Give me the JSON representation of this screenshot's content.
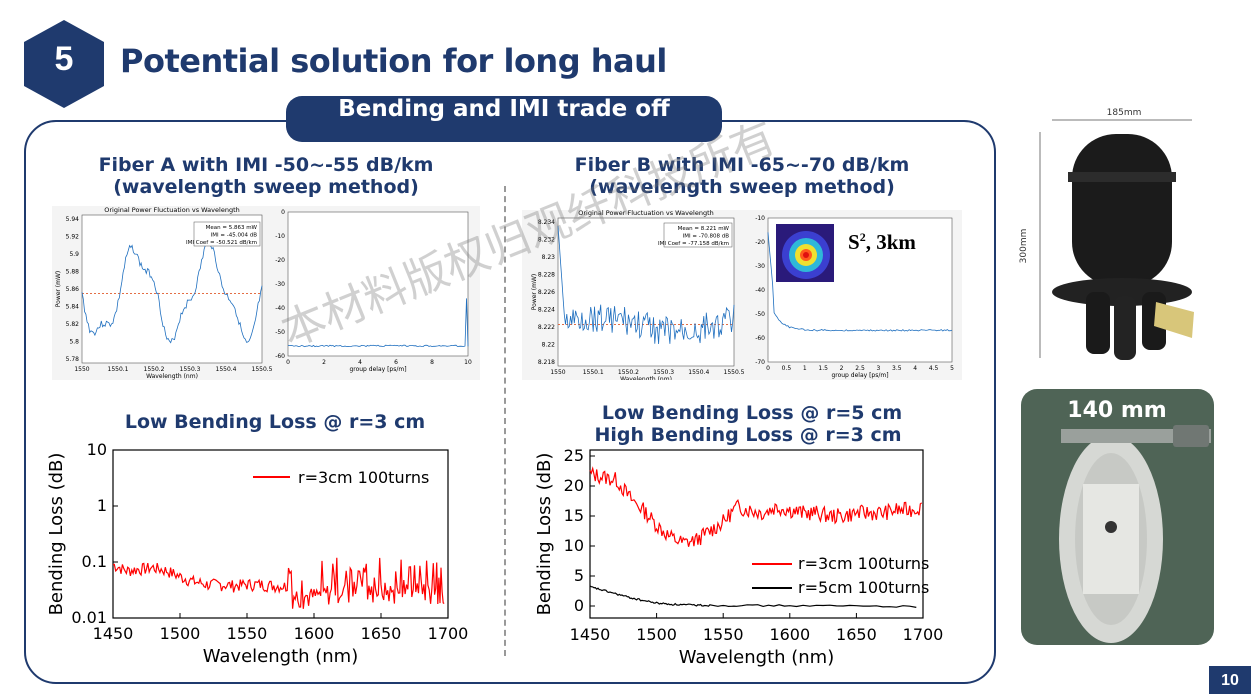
{
  "header": {
    "section_number": "5",
    "title": "Potential solution for long haul",
    "pill": "Bending and IMI trade off",
    "page_number": "10"
  },
  "left": {
    "subtitle_1": "Fiber A with IMI -50~-55 dB/km",
    "subtitle_2": "(wavelength sweep method)",
    "chart_title": "Low Bending Loss @ r=3 cm"
  },
  "right": {
    "subtitle_1": "Fiber B with IMI -65~-70 dB/km",
    "subtitle_2": "(wavelength sweep method)",
    "chart_title_1": "Low Bending Loss @ r=5 cm",
    "chart_title_2": "High Bending Loss @ r=3 cm",
    "inset_label": "S",
    "inset_sup": "2",
    "inset_suffix": ", 3km"
  },
  "photos": {
    "top_width_label": "185mm",
    "top_height_label": "300mm",
    "bottom_label": "140 mm"
  },
  "watermark": "本材料版权归观纤科技所有",
  "colors": {
    "navy": "#1f3a6e",
    "red": "#ff0000",
    "black": "#000000",
    "blue": "#1f6fbf"
  },
  "insets": {
    "A": {
      "left_title": "Original Power Fluctuation vs Wavelength",
      "left_ylabel": "Power (mW)",
      "left_xlabel": "Wavelength (nm)",
      "left_yticks": [
        "5.94",
        "5.92",
        "5.9",
        "5.88",
        "5.86",
        "5.84",
        "5.82",
        "5.8",
        "5.78"
      ],
      "left_xticks": [
        "1550",
        "1550.1",
        "1550.2",
        "1550.3",
        "1550.4",
        "1550.5"
      ],
      "legend": [
        "Mean = 5.863 mW",
        "IMI = -45.004 dB",
        "IMI Coef = -50.521 dB/km"
      ],
      "right_xlabel": "group delay [ps/m]",
      "right_yticks": [
        "0",
        "-10",
        "-20",
        "-30",
        "-40",
        "-50",
        "-60"
      ],
      "right_xticks": [
        "0",
        "2",
        "4",
        "6",
        "8",
        "10"
      ]
    },
    "B": {
      "left_title": "Original Power Fluctuation vs Wavelength",
      "left_ylabel": "Power (mW)",
      "left_xlabel": "Wavelength (nm)",
      "left_yticks": [
        "8.234",
        "8.232",
        "8.23",
        "8.228",
        "8.226",
        "8.224",
        "8.222",
        "8.22",
        "8.218"
      ],
      "left_xticks": [
        "1550",
        "1550.1",
        "1550.2",
        "1550.3",
        "1550.4",
        "1550.5"
      ],
      "legend": [
        "Mean = 8.221 mW",
        "IMI = -70.808 dB",
        "IMI Coef = -77.158 dB/km"
      ],
      "right_xlabel": "group delay [ps/m]",
      "right_yticks": [
        "-10",
        "-20",
        "-30",
        "-40",
        "-50",
        "-60",
        "-70"
      ],
      "right_xticks": [
        "0",
        "0.5",
        "1",
        "1.5",
        "2",
        "2.5",
        "3",
        "3.5",
        "4",
        "4.5",
        "5"
      ]
    }
  },
  "chart_data": [
    {
      "type": "line",
      "title": "Low Bending Loss @ r=3 cm",
      "xlabel": "Wavelength (nm)",
      "ylabel": "Bending Loss (dB)",
      "xlim": [
        1450,
        1700
      ],
      "ylim": [
        0.01,
        10
      ],
      "yscale": "log",
      "legend_position": "top-right",
      "xticks": [
        "1450",
        "1500",
        "1550",
        "1600",
        "1650",
        "1700"
      ],
      "yticks": [
        "10",
        "1",
        "0.1",
        "0.01"
      ],
      "series": [
        {
          "name": "r=3cm 100turns",
          "color": "#ff0000",
          "x": [
            1450,
            1460,
            1470,
            1480,
            1490,
            1500,
            1510,
            1520,
            1530,
            1540,
            1550,
            1560,
            1570,
            1580,
            1590,
            1600,
            1610,
            1620,
            1630,
            1640,
            1650,
            1660,
            1670,
            1680,
            1690,
            1698
          ],
          "y": [
            0.09,
            0.07,
            0.075,
            0.08,
            0.07,
            0.055,
            0.045,
            0.04,
            0.04,
            0.038,
            0.04,
            0.04,
            0.038,
            0.037,
            0.035,
            0.035,
            0.04,
            0.045,
            0.04,
            0.04,
            0.045,
            0.04,
            0.045,
            0.04,
            0.045,
            0.04
          ]
        }
      ]
    },
    {
      "type": "line",
      "title": "Low Bending Loss @ r=5 cm / High Bending Loss @ r=3 cm",
      "xlabel": "Wavelength (nm)",
      "ylabel": "Bending Loss (dB)",
      "xlim": [
        1450,
        1700
      ],
      "ylim": [
        -2,
        26
      ],
      "legend_position": "bottom-right",
      "xticks": [
        "1450",
        "1500",
        "1550",
        "1600",
        "1650",
        "1700"
      ],
      "yticks": [
        "25",
        "20",
        "15",
        "10",
        "5",
        "0"
      ],
      "series": [
        {
          "name": "r=3cm 100turns",
          "color": "#ff0000",
          "x": [
            1450,
            1460,
            1470,
            1480,
            1490,
            1500,
            1510,
            1520,
            1530,
            1540,
            1550,
            1560,
            1570,
            1580,
            1590,
            1600,
            1610,
            1620,
            1630,
            1640,
            1650,
            1660,
            1670,
            1680,
            1690,
            1700
          ],
          "y": [
            22,
            21.5,
            21,
            18,
            16,
            13.5,
            11.5,
            10.5,
            11,
            12.5,
            14,
            16.5,
            16,
            15.5,
            16.5,
            16,
            15.5,
            15.5,
            15,
            15,
            15.5,
            15.5,
            15.5,
            16,
            16,
            16.5
          ]
        },
        {
          "name": "r=5cm 100turns",
          "color": "#000000",
          "x": [
            1450,
            1460,
            1470,
            1480,
            1490,
            1500,
            1510,
            1520,
            1530,
            1540,
            1560,
            1600,
            1650,
            1700
          ],
          "y": [
            3.2,
            2.6,
            2.0,
            1.4,
            0.9,
            0.5,
            0.3,
            0.2,
            0.15,
            0.1,
            0.08,
            0.05,
            0.0,
            -0.1
          ]
        }
      ]
    }
  ]
}
